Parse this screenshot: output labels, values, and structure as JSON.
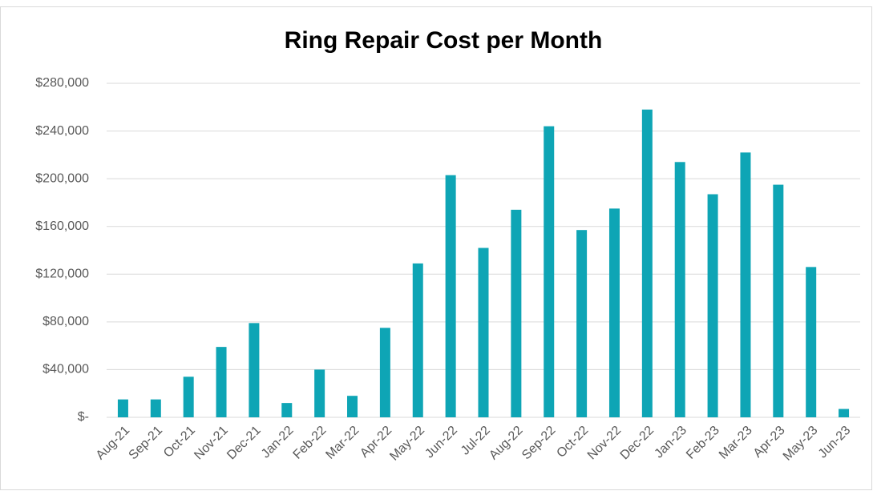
{
  "chart_data": {
    "type": "bar",
    "title": "Ring Repair Cost per Month",
    "categories": [
      "Aug-21",
      "Sep-21",
      "Oct-21",
      "Nov-21",
      "Dec-21",
      "Jan-22",
      "Feb-22",
      "Mar-22",
      "Apr-22",
      "May-22",
      "Jun-22",
      "Jul-22",
      "Aug-22",
      "Sep-22",
      "Oct-22",
      "Nov-22",
      "Dec-22",
      "Jan-23",
      "Feb-23",
      "Mar-23",
      "Apr-23",
      "May-23",
      "Jun-23"
    ],
    "values": [
      15000,
      15000,
      34000,
      59000,
      79000,
      12000,
      40000,
      18000,
      75000,
      129000,
      203000,
      142000,
      174000,
      244000,
      157000,
      175000,
      258000,
      214000,
      187000,
      222000,
      195000,
      126000,
      7000
    ],
    "color": "#0ea5b5",
    "ylim": [
      0,
      280000
    ],
    "yticks": [
      {
        "value": 0,
        "label": "$-"
      },
      {
        "value": 40000,
        "label": "$40,000"
      },
      {
        "value": 80000,
        "label": "$80,000"
      },
      {
        "value": 120000,
        "label": "$120,000"
      },
      {
        "value": 160000,
        "label": "$160,000"
      },
      {
        "value": 200000,
        "label": "$200,000"
      },
      {
        "value": 240000,
        "label": "$240,000"
      },
      {
        "value": 280000,
        "label": "$280,000"
      }
    ],
    "grid": true
  }
}
